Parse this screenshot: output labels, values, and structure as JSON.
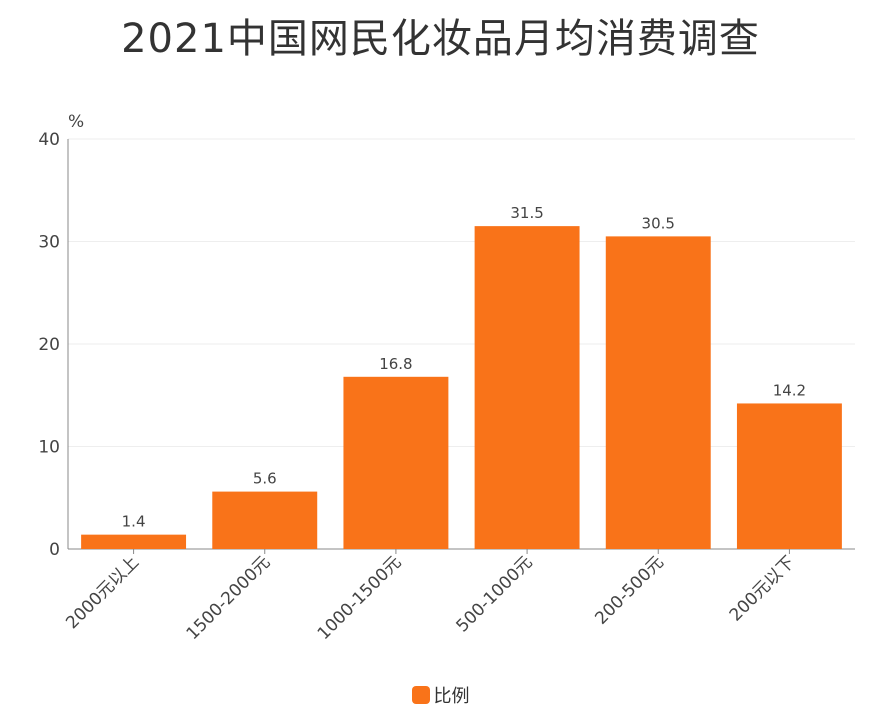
{
  "chart_data": {
    "type": "bar",
    "title": "2021中国网民化妆品月均消费调查",
    "ylabel": "%",
    "categories": [
      "2000元以上",
      "1500-2000元",
      "1000-1500元",
      "500-1000元",
      "200-500元",
      "200元以下"
    ],
    "series": [
      {
        "name": "比例",
        "values": [
          1.4,
          5.6,
          16.8,
          31.5,
          30.5,
          14.2
        ]
      }
    ],
    "ylim": [
      0,
      40
    ],
    "yticks": [
      0,
      10,
      20,
      30,
      40
    ],
    "grid": true,
    "legend": "bottom",
    "bar_color": "#f97319",
    "axis_color": "#888888",
    "grid_color": "#eeeeee"
  }
}
